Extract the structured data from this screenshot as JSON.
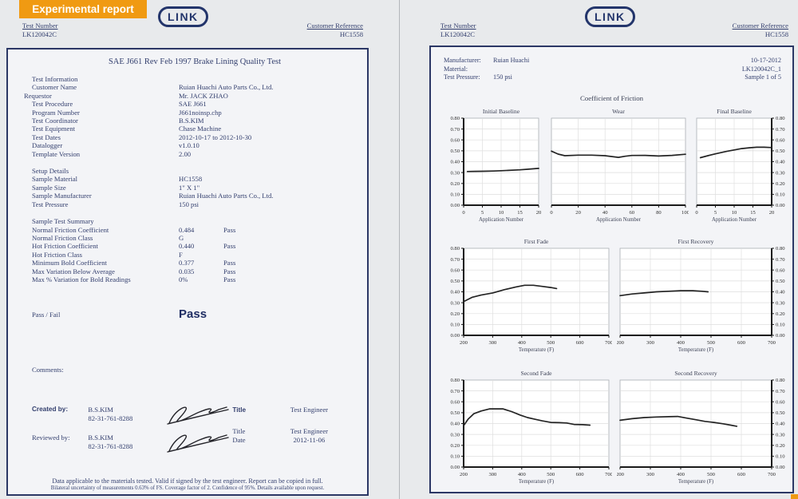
{
  "badge_label": "Experimental report",
  "logo_text": "LINK",
  "left_header": {
    "test_number_label": "Test Number",
    "test_number_value": "LK120042C",
    "customer_ref_label": "Customer Reference",
    "customer_ref_value": "HC1558"
  },
  "right_header": {
    "test_number_label": "Test Number",
    "test_number_value": "LK120042C",
    "customer_ref_label": "Customer Reference",
    "customer_ref_value": "HC1558"
  },
  "left_page": {
    "title": "SAE J661 Rev Feb 1997 Brake Lining Quality Test",
    "test_info": {
      "heading": "Test Information",
      "rows": [
        {
          "label": "Customer Name",
          "value": "Ruian Huachi Auto Parts Co., Ltd."
        },
        {
          "label": "Requestor",
          "value": "Mr. JACK ZHAO",
          "outdent": true
        },
        {
          "label": "Test Procedure",
          "value": "SAE J661"
        },
        {
          "label": "Program Number",
          "value": "J661noinsp.chp"
        },
        {
          "label": "Test Coordinator",
          "value": "B.S.KIM"
        },
        {
          "label": "Test Equipment",
          "value": "Chase Machine"
        },
        {
          "label": "Test Dates",
          "value": "2012-10-17 to 2012-10-30"
        },
        {
          "label": "Datalogger",
          "value": "v1.0.10"
        },
        {
          "label": "Template Version",
          "value": "2.00"
        }
      ]
    },
    "setup": {
      "heading": "Setup Details",
      "rows": [
        {
          "label": "Sample Material",
          "value": "HC1558"
        },
        {
          "label": "Sample Size",
          "value": "1\" X 1\""
        },
        {
          "label": "Sample Manufacturer",
          "value": "Ruian Huachi Auto Parts Co., Ltd."
        },
        {
          "label": "Test Pressure",
          "value": "150 psi"
        }
      ]
    },
    "summary": {
      "heading": "Sample Test Summary",
      "rows": [
        {
          "label": "Normal Friction Coefficient",
          "value": "0.484",
          "status": "Pass"
        },
        {
          "label": "Normal Friction Class",
          "value": "G",
          "status": ""
        },
        {
          "label": "Hot Friction Coefficient",
          "value": "0.440",
          "status": "Pass"
        },
        {
          "label": "Hot Friction Class",
          "value": "F",
          "status": ""
        },
        {
          "label": "Minimum Bold Coefficient",
          "value": "0.377",
          "status": "Pass"
        },
        {
          "label": "Max Variation Below Average",
          "value": "0.035",
          "status": "Pass"
        },
        {
          "label": "Max % Variation for Bold Readings",
          "value": "0%",
          "status": "Pass"
        }
      ]
    },
    "passfail": {
      "label": "Pass / Fail",
      "value": "Pass"
    },
    "comments_label": "Comments:",
    "signoff": {
      "created": {
        "label": "Created by:",
        "name": "B.S.KIM",
        "phone": "82-31-761-8288",
        "title_label": "Title",
        "title_value": "Test Engineer"
      },
      "reviewed": {
        "label": "Reviewed by:",
        "name": "B.S.KIM",
        "phone": "82-31-761-8288",
        "title_label": "Title",
        "title_value": "Test Engineer",
        "date_label": "Date",
        "date_value": "2012-11-06"
      }
    },
    "footer_line1": "Data applicable to the materials tested. Valid if signed by the test engineer.  Report can be copied in full.",
    "footer_line2": "Bilateral uncertainty of measurements 0.63% of FS.  Coverage factor of 2.  Confidence of 95%.  Details available upon request."
  },
  "right_page": {
    "meta": {
      "rows": [
        {
          "label": "Manufacturer:",
          "value": "Ruian Huachi"
        },
        {
          "label": "Material:",
          "value": ""
        },
        {
          "label": "Test Pressure:",
          "value": "150 psi"
        }
      ],
      "date": "10-17-2012",
      "sample_id": "LK120042C_1",
      "sample_label": "Sample 1 of 5"
    },
    "charts_title": "Coefficient of Friction"
  },
  "chart_data": [
    {
      "type": "line",
      "title": "Initial Baseline",
      "xlabel": "Application Number",
      "xlim": [
        0,
        20
      ],
      "ylim": [
        0,
        0.8
      ],
      "x_ticks": [
        0,
        5,
        10,
        15,
        20
      ],
      "y_tick_step": 0.1,
      "y_axis_side": "left",
      "grid": true,
      "x": [
        1,
        3,
        5,
        8,
        10,
        12,
        15,
        17,
        20
      ],
      "y": [
        0.31,
        0.311,
        0.312,
        0.314,
        0.317,
        0.32,
        0.325,
        0.33,
        0.338
      ]
    },
    {
      "type": "line",
      "title": "Wear",
      "xlabel": "Application Number",
      "xlim": [
        0,
        100
      ],
      "ylim": [
        0,
        0.8
      ],
      "x_ticks": [
        0,
        20,
        40,
        60,
        80,
        100
      ],
      "y_tick_step": 0.1,
      "y_axis_side": "none",
      "grid": true,
      "x": [
        0,
        5,
        10,
        20,
        30,
        40,
        50,
        55,
        60,
        70,
        80,
        90,
        100
      ],
      "y": [
        0.497,
        0.47,
        0.455,
        0.46,
        0.46,
        0.455,
        0.44,
        0.45,
        0.457,
        0.458,
        0.452,
        0.458,
        0.468
      ]
    },
    {
      "type": "line",
      "title": "Final Baseline",
      "xlabel": "Application Number",
      "xlim": [
        0,
        20
      ],
      "ylim": [
        0,
        0.8
      ],
      "x_ticks": [
        0,
        5,
        10,
        15,
        20
      ],
      "y_tick_step": 0.1,
      "y_axis_side": "right",
      "grid": true,
      "x": [
        1,
        3,
        5,
        8,
        10,
        12,
        14,
        16,
        18,
        20
      ],
      "y": [
        0.437,
        0.455,
        0.472,
        0.495,
        0.508,
        0.52,
        0.528,
        0.533,
        0.533,
        0.53
      ]
    },
    {
      "type": "line",
      "title": "First Fade",
      "xlabel": "Temperature (F)",
      "xlim": [
        200,
        700
      ],
      "ylim": [
        0,
        0.8
      ],
      "x_ticks": [
        200,
        300,
        400,
        500,
        600,
        700
      ],
      "y_tick_step": 0.1,
      "y_axis_side": "left",
      "grid": true,
      "x": [
        200,
        230,
        260,
        300,
        340,
        380,
        410,
        440,
        470,
        500,
        520
      ],
      "y": [
        0.31,
        0.35,
        0.37,
        0.39,
        0.42,
        0.445,
        0.46,
        0.46,
        0.45,
        0.44,
        0.43
      ]
    },
    {
      "type": "line",
      "title": "First Recovery",
      "xlabel": "Temperature (F)",
      "xlim": [
        200,
        700
      ],
      "ylim": [
        0,
        0.8
      ],
      "x_ticks": [
        200,
        300,
        400,
        500,
        600,
        700
      ],
      "y_tick_step": 0.1,
      "y_axis_side": "right",
      "grid": true,
      "x": [
        200,
        240,
        280,
        320,
        360,
        400,
        440,
        470,
        490
      ],
      "y": [
        0.365,
        0.38,
        0.39,
        0.4,
        0.405,
        0.41,
        0.41,
        0.405,
        0.4
      ]
    },
    {
      "type": "line",
      "title": "Second Fade",
      "xlabel": "Temperature (F)",
      "xlim": [
        200,
        700
      ],
      "ylim": [
        0,
        0.8
      ],
      "x_ticks": [
        200,
        300,
        400,
        500,
        600,
        700
      ],
      "y_tick_step": 0.1,
      "y_axis_side": "left",
      "grid": true,
      "x": [
        200,
        215,
        235,
        260,
        290,
        335,
        365,
        395,
        420,
        445,
        470,
        500,
        530,
        555,
        580,
        610,
        635
      ],
      "y": [
        0.38,
        0.44,
        0.49,
        0.515,
        0.535,
        0.535,
        0.51,
        0.478,
        0.455,
        0.44,
        0.425,
        0.41,
        0.408,
        0.405,
        0.392,
        0.39,
        0.385
      ]
    },
    {
      "type": "line",
      "title": "Second Recovery",
      "xlabel": "Temperature (F)",
      "xlim": [
        200,
        700
      ],
      "ylim": [
        0,
        0.8
      ],
      "x_ticks": [
        200,
        300,
        400,
        500,
        600,
        700
      ],
      "y_tick_step": 0.1,
      "y_axis_side": "right",
      "grid": true,
      "x": [
        200,
        240,
        280,
        320,
        360,
        390,
        420,
        450,
        480,
        510,
        540,
        565,
        585
      ],
      "y": [
        0.43,
        0.445,
        0.455,
        0.46,
        0.463,
        0.465,
        0.45,
        0.435,
        0.42,
        0.41,
        0.398,
        0.385,
        0.375
      ]
    }
  ]
}
